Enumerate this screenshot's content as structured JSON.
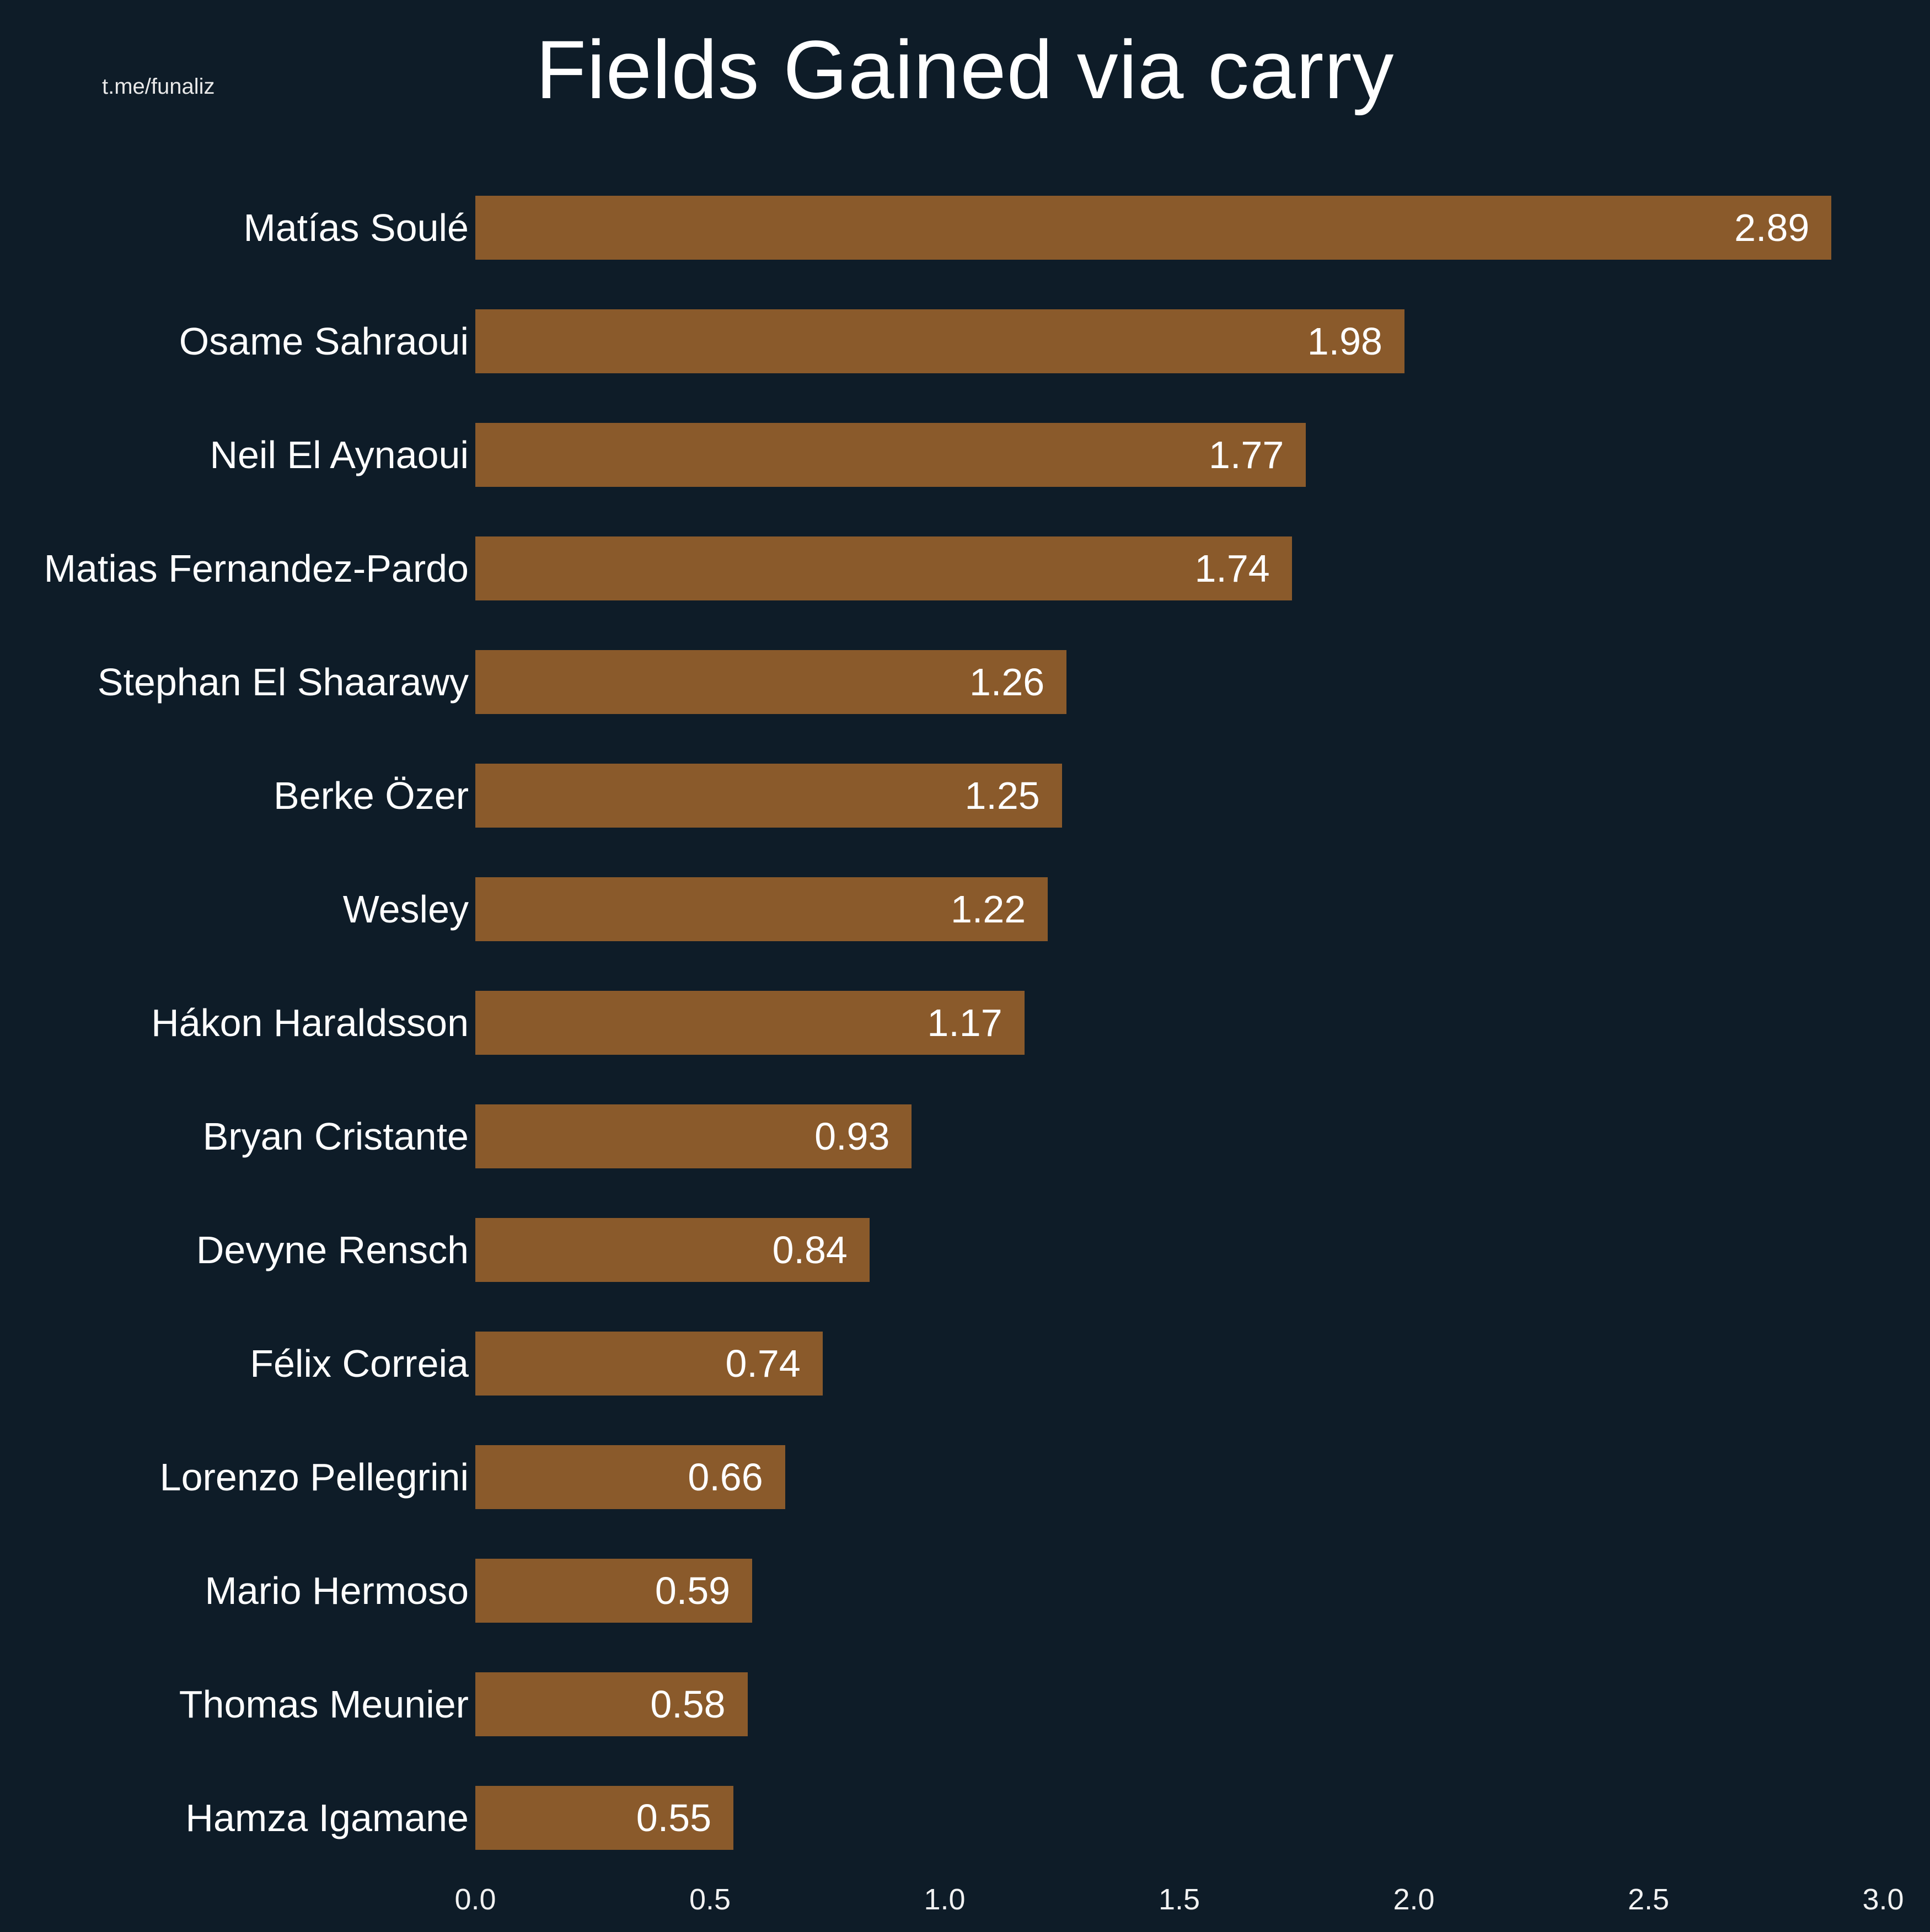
{
  "watermark": "t.me/funaliz",
  "chart_data": {
    "type": "bar",
    "orientation": "horizontal",
    "title": "Fields Gained via carry",
    "categories": [
      "Matías Soulé",
      "Osame Sahraoui",
      "Neil El Aynaoui",
      "Matias Fernandez-Pardo",
      "Stephan El Shaarawy",
      "Berke Özer",
      "Wesley",
      "Hákon Haraldsson",
      "Bryan Cristante",
      "Devyne Rensch",
      "Félix Correia",
      "Lorenzo Pellegrini",
      "Mario Hermoso",
      "Thomas Meunier",
      "Hamza Igamane"
    ],
    "values": [
      2.89,
      1.98,
      1.77,
      1.74,
      1.26,
      1.25,
      1.22,
      1.17,
      0.93,
      0.84,
      0.74,
      0.66,
      0.59,
      0.58,
      0.55
    ],
    "xlabel": "",
    "ylabel": "",
    "xlim": [
      0,
      3.0
    ],
    "x_ticks": [
      "0.0",
      "0.5",
      "1.0",
      "1.5",
      "2.0",
      "2.5",
      "3.0"
    ],
    "value_label_position": "inside-end",
    "grid": false,
    "legend": "none",
    "bar_color": "#8a5a2b",
    "background_color": "#0e1c28",
    "text_color": "#ffffff"
  }
}
